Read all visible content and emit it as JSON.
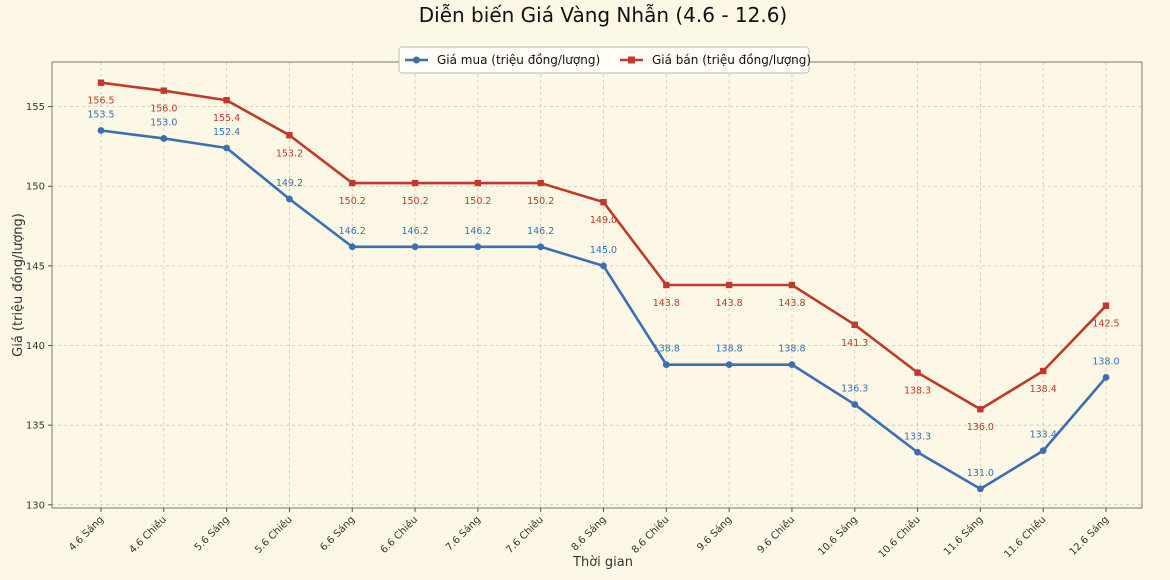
{
  "chart_data": {
    "type": "line",
    "title": "Diễn biến Giá Vàng Nhẫn (4.6 - 12.6)",
    "xlabel": "Thời gian",
    "ylabel": "Giá (triệu đồng/lượng)",
    "ylim": [
      129.8,
      157.8
    ],
    "yticks": [
      130,
      135,
      140,
      145,
      150,
      155
    ],
    "grid": true,
    "legend_position": "top-center",
    "categories": [
      "4.6 Sáng",
      "4.6 Chiều",
      "5.6 Sáng",
      "5.6 Chiều",
      "6.6 Sáng",
      "6.6 Chiều",
      "7.6 Sáng",
      "7.6 Chiều",
      "8.6 Sáng",
      "8.6 Chiều",
      "9.6 Sáng",
      "9.6 Chiều",
      "10.6 Sáng",
      "10.6 Chiều",
      "11.6 Sáng",
      "11.6 Chiều",
      "12.6 Sáng"
    ],
    "series": [
      {
        "name": "Giá mua (triệu đồng/lượng)",
        "color": "#3b6fb0",
        "marker": "circle",
        "label_position": "above",
        "values": [
          153.5,
          153.0,
          152.4,
          149.2,
          146.2,
          146.2,
          146.2,
          146.2,
          145.0,
          138.8,
          138.8,
          138.8,
          136.3,
          133.3,
          131.0,
          133.4,
          138.0
        ],
        "labels": [
          "153.5",
          "153.0",
          "152.4",
          "149.2",
          "146.2",
          "146.2",
          "146.2",
          "146.2",
          "145.0",
          "138.8",
          "138.8",
          "138.8",
          "136.3",
          "133.3",
          "131.0",
          "133.4",
          "138.0"
        ]
      },
      {
        "name": "Giá bán (triệu đồng/lượng)",
        "color": "#c0392b",
        "marker": "square",
        "label_position": "below",
        "values": [
          156.5,
          156.0,
          155.4,
          153.2,
          150.2,
          150.2,
          150.2,
          150.2,
          149.0,
          143.8,
          143.8,
          143.8,
          141.3,
          138.3,
          136.0,
          138.4,
          142.5
        ],
        "labels": [
          "156.5",
          "156.0",
          "155.4",
          "153.2",
          "150.2",
          "150.2",
          "150.2",
          "150.2",
          "149.0",
          "143.8",
          "143.8",
          "143.8",
          "141.3",
          "138.3",
          "136.0",
          "138.4",
          "142.5"
        ]
      }
    ]
  }
}
